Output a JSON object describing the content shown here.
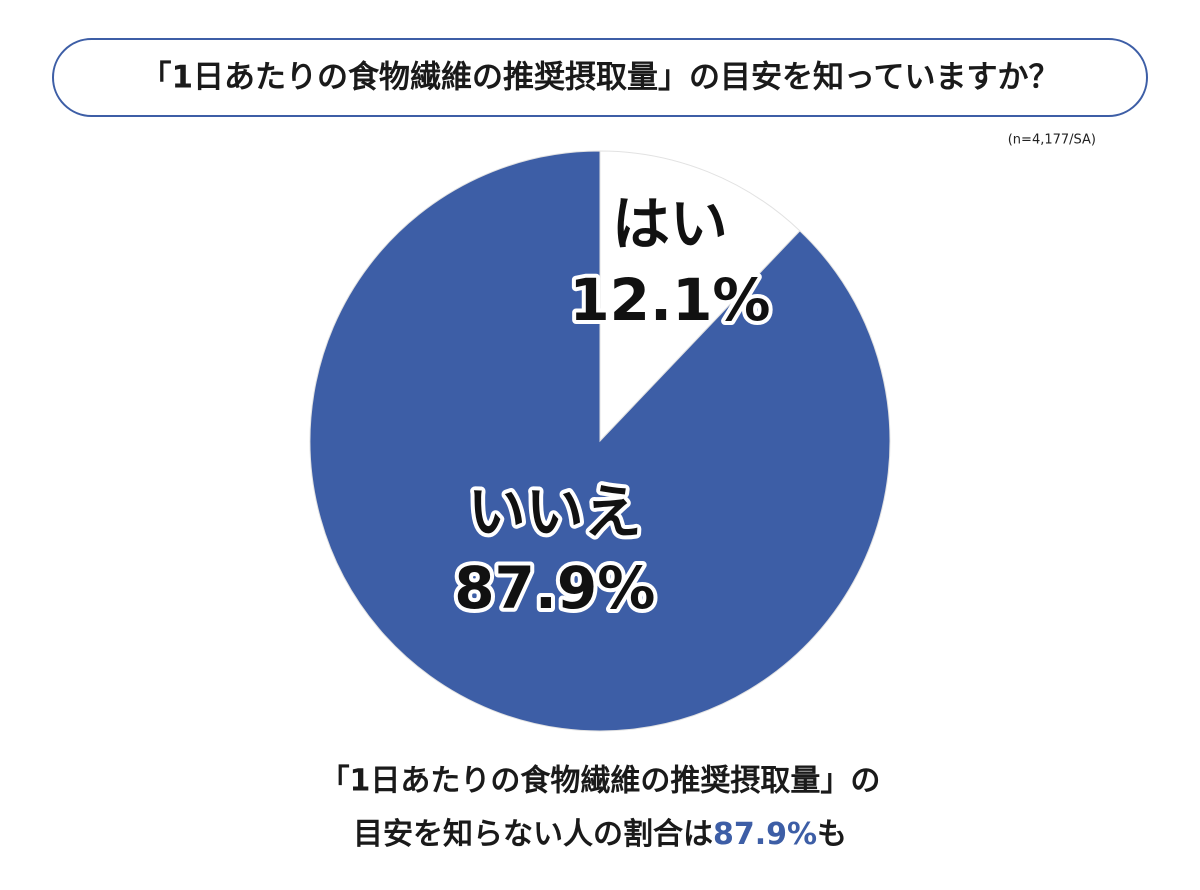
{
  "chart_data": {
    "type": "pie",
    "title": "「1日あたりの食物繊維の推奨摂取量」の目安を知っていますか？",
    "note": "(n=4,177/SA)",
    "categories": [
      "はい",
      "いいえ"
    ],
    "values": [
      12.1,
      87.9
    ],
    "value_labels": [
      "12.1%",
      "87.9%"
    ],
    "colors": [
      "#ffffff",
      "#3d5ea6"
    ],
    "caption": [
      "「1日あたりの食物繊維の推奨摂取量」の",
      "目安を知らない人の割合は",
      "87.9%",
      "も"
    ]
  }
}
